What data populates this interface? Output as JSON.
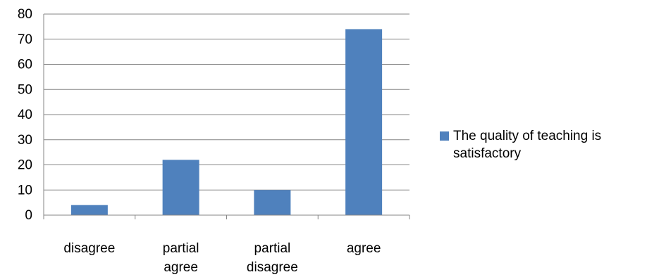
{
  "chart_data": {
    "type": "bar",
    "categories": [
      "disagree",
      "partial agree",
      "partial disagree",
      "agree"
    ],
    "category_label_lines": [
      [
        "disagree"
      ],
      [
        "partial",
        "agree"
      ],
      [
        "partial",
        "disagree"
      ],
      [
        "agree"
      ]
    ],
    "series": [
      {
        "name": "The quality of teaching is satisfactory",
        "values": [
          4,
          22,
          10,
          74
        ]
      }
    ],
    "ylim": [
      0,
      80
    ],
    "yticks": [
      0,
      10,
      20,
      30,
      40,
      50,
      60,
      70,
      80
    ],
    "grid": true,
    "legend_position": "right",
    "colors": {
      "bar": "#4f81bd",
      "grid": "#868686",
      "axis": "#868686",
      "text": "#000000"
    }
  }
}
